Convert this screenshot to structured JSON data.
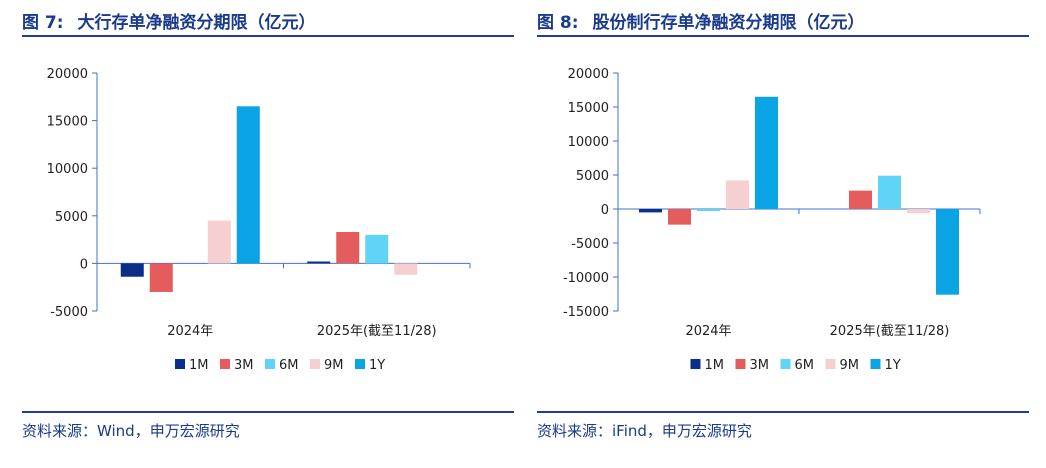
{
  "colors": {
    "title": "#1a3a8c",
    "rule": "#1f3d99",
    "axis": "#4472c4",
    "series": {
      "1M": "#0b2e8a",
      "3M": "#e45c5c",
      "6M": "#5fd4f7",
      "9M": "#f6d0d0",
      "1Y": "#0aa3e3"
    }
  },
  "left": {
    "fig_label": "图 7:",
    "title_text": "大行存单净融资分期限（亿元）",
    "source": "资料来源：Wind，申万宏源研究"
  },
  "right": {
    "fig_label": "图 8:",
    "title_text": "股份制行存单净融资分期限（亿元）",
    "source": "资料来源：iFind，申万宏源研究"
  },
  "chart_data": [
    {
      "type": "bar",
      "title": "大行存单净融资分期限（亿元）",
      "categories": [
        "2024年",
        "2025年(截至11/28)"
      ],
      "series": [
        {
          "name": "1M",
          "values": [
            -1400,
            200
          ]
        },
        {
          "name": "3M",
          "values": [
            -3000,
            3300
          ]
        },
        {
          "name": "6M",
          "values": [
            0,
            3000
          ]
        },
        {
          "name": "9M",
          "values": [
            4500,
            -1200
          ]
        },
        {
          "name": "1Y",
          "values": [
            16500,
            0
          ]
        }
      ],
      "yticks": [
        -5000,
        0,
        5000,
        10000,
        15000,
        20000
      ],
      "ylim": [
        -5000,
        20000
      ],
      "xlabel": "",
      "ylabel": "",
      "legend": "bottom"
    },
    {
      "type": "bar",
      "title": "股份制行存单净融资分期限（亿元）",
      "categories": [
        "2024年",
        "2025年(截至11/28)"
      ],
      "series": [
        {
          "name": "1M",
          "values": [
            -500,
            0
          ]
        },
        {
          "name": "3M",
          "values": [
            -2300,
            2700
          ]
        },
        {
          "name": "6M",
          "values": [
            -300,
            4900
          ]
        },
        {
          "name": "9M",
          "values": [
            4200,
            -600
          ]
        },
        {
          "name": "1Y",
          "values": [
            16500,
            -12600
          ]
        }
      ],
      "yticks": [
        -15000,
        -10000,
        -5000,
        0,
        5000,
        10000,
        15000,
        20000
      ],
      "ylim": [
        -15000,
        20000
      ],
      "xlabel": "",
      "ylabel": "",
      "legend": "bottom"
    }
  ]
}
